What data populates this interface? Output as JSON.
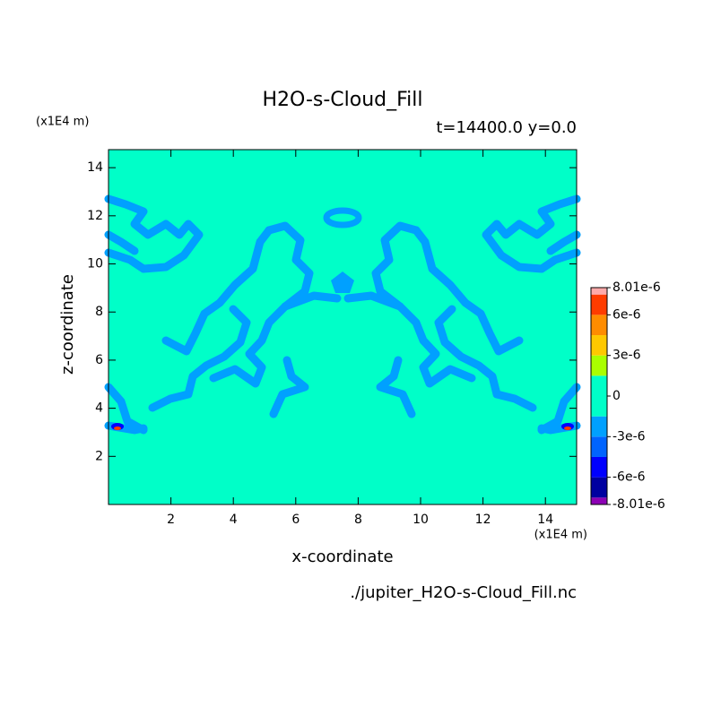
{
  "chart_data": {
    "type": "contour",
    "title": "H2O-s-Cloud_Fill",
    "subtitle": "t=14400.0 y=0.0",
    "x_label": "x-coordinate",
    "y_label": "z-coordinate",
    "x_unit": "(x1E4 m)",
    "y_unit": "(x1E4 m)",
    "source": "./jupiter_H2O-s-Cloud_Fill.nc",
    "xlim": [
      0,
      15
    ],
    "ylim": [
      0,
      14.75
    ],
    "xticks": [
      2,
      4,
      6,
      8,
      10,
      12,
      14
    ],
    "yticks": [
      2,
      4,
      6,
      8,
      10,
      12,
      14
    ],
    "colorbar": {
      "lim": [
        -8.01e-06,
        8.01e-06
      ],
      "ticks": [
        {
          "value": 8.01e-06,
          "label": "8.01e-6"
        },
        {
          "value": 6e-06,
          "label": "6e-6"
        },
        {
          "value": 3e-06,
          "label": "3e-6"
        },
        0,
        {
          "value": -3e-06,
          "label": "-3e-6"
        },
        {
          "value": -6e-06,
          "label": "-6e-6"
        },
        {
          "value": -8.01e-06,
          "label": "-8.01e-6"
        }
      ],
      "bins": [
        -8.01e-06,
        -7.5e-06,
        -6e-06,
        -4.5e-06,
        -3e-06,
        -1.5e-06,
        1.5e-06,
        3e-06,
        4.5e-06,
        6e-06,
        7.5e-06,
        8.01e-06
      ],
      "colors": [
        "#8c00b4",
        "#0000a0",
        "#0000ff",
        "#0064ff",
        "#00a0ff",
        "#00ffc8",
        "#aaff00",
        "#ffc800",
        "#ff8c00",
        "#ff3c00",
        "#ffaaaa"
      ]
    }
  }
}
